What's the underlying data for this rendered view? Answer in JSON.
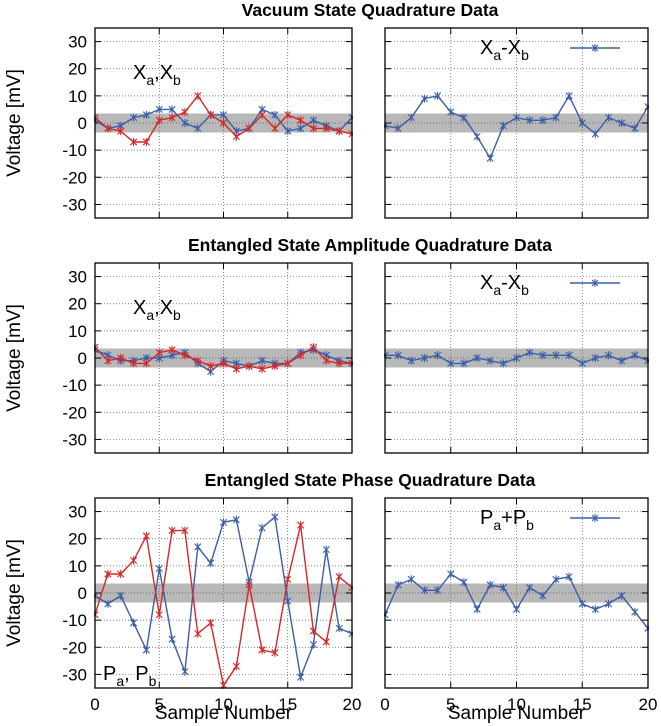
{
  "chart_data": [
    {
      "type": "line",
      "title": "Vacuum State Quadrature Data",
      "xlabel": "",
      "ylabel": "Voltage [mV]",
      "xlim": [
        0,
        20
      ],
      "ylim": [
        -35,
        35
      ],
      "x_ticks": [
        "0",
        "5",
        "10",
        "15",
        "20"
      ],
      "y_ticks": [
        "30",
        "20",
        "10",
        "0",
        "-10",
        "-20",
        "-30"
      ],
      "x_tick_labels_shown": false,
      "grid": true,
      "band": [
        -3.5,
        3.5
      ],
      "legend": {
        "main": "X",
        "sub1": "a",
        "mid": ",X",
        "sub2": "b",
        "placement": "top-left"
      },
      "series": [
        {
          "color": "#3b5ea8",
          "marker": "x",
          "x": [
            0,
            1,
            2,
            3,
            4,
            5,
            6,
            7,
            8,
            9,
            10,
            11,
            12,
            13,
            14,
            15,
            16,
            17,
            18,
            19,
            20
          ],
          "values": [
            1,
            -2,
            -1,
            2,
            3,
            5,
            5,
            0,
            -2,
            3,
            3,
            -3,
            -2,
            5,
            3,
            -3,
            -2,
            1,
            -1,
            -3,
            2
          ]
        },
        {
          "color": "#d62728",
          "marker": "x",
          "x": [
            0,
            1,
            2,
            3,
            4,
            5,
            6,
            7,
            8,
            9,
            10,
            11,
            12,
            13,
            14,
            15,
            16,
            17,
            18,
            19,
            20
          ],
          "values": [
            2,
            -2,
            -3,
            -7,
            -7,
            1,
            2,
            4,
            10,
            3,
            0,
            -5,
            -2,
            3,
            -2,
            3,
            1,
            -2,
            -2,
            -3,
            -4
          ]
        }
      ]
    },
    {
      "type": "line",
      "title": "",
      "xlabel": "",
      "ylabel": "",
      "xlim": [
        0,
        20
      ],
      "ylim": [
        -35,
        35
      ],
      "x_ticks": [
        "0",
        "5",
        "10",
        "15",
        "20"
      ],
      "grid": true,
      "band": [
        -3.5,
        3.5
      ],
      "legend": {
        "main": "X",
        "sub1": "a",
        "mid": "-X",
        "sub2": "b",
        "placement": "top-right"
      },
      "series": [
        {
          "color": "#3b5ea8",
          "marker": "x",
          "x": [
            0,
            1,
            2,
            3,
            4,
            5,
            6,
            7,
            8,
            9,
            10,
            11,
            12,
            13,
            14,
            15,
            16,
            17,
            18,
            19,
            20
          ],
          "values": [
            -1,
            -2,
            2,
            9,
            10,
            4,
            2,
            -5,
            -13,
            -1,
            2,
            1,
            1,
            2,
            10,
            0,
            -4,
            2,
            0,
            -2,
            6
          ]
        }
      ]
    },
    {
      "type": "line",
      "title": "Entangled State Amplitude Quadrature Data",
      "xlabel": "",
      "ylabel": "Voltage [mV]",
      "xlim": [
        0,
        20
      ],
      "ylim": [
        -35,
        35
      ],
      "x_ticks": [
        "0",
        "5",
        "10",
        "15",
        "20"
      ],
      "y_ticks": [
        "30",
        "20",
        "10",
        "0",
        "-10",
        "-20",
        "-30"
      ],
      "x_tick_labels_shown": false,
      "grid": true,
      "band": [
        -3.5,
        3.5
      ],
      "legend": {
        "main": "X",
        "sub1": "a",
        "mid": ",X",
        "sub2": "b",
        "placement": "top-left"
      },
      "series": [
        {
          "color": "#3b5ea8",
          "marker": "x",
          "x": [
            0,
            1,
            2,
            3,
            4,
            5,
            6,
            7,
            8,
            9,
            10,
            11,
            12,
            13,
            14,
            15,
            16,
            17,
            18,
            19,
            20
          ],
          "values": [
            3,
            1,
            -1,
            -1,
            0,
            0,
            1,
            2,
            -2,
            -5,
            -1,
            -2,
            -3,
            -1,
            -2,
            -2,
            2,
            3,
            1,
            -1,
            -2
          ]
        },
        {
          "color": "#d62728",
          "marker": "x",
          "x": [
            0,
            1,
            2,
            3,
            4,
            5,
            6,
            7,
            8,
            9,
            10,
            11,
            12,
            13,
            14,
            15,
            16,
            17,
            18,
            19,
            20
          ],
          "values": [
            4,
            -1,
            0,
            -2,
            -2,
            2,
            3,
            1,
            -1,
            -3,
            -2,
            -4,
            -3,
            -4,
            -3,
            -2,
            1,
            4,
            -1,
            -2,
            -2
          ]
        }
      ]
    },
    {
      "type": "line",
      "title": "",
      "xlabel": "",
      "ylabel": "",
      "xlim": [
        0,
        20
      ],
      "ylim": [
        -35,
        35
      ],
      "x_ticks": [
        "0",
        "5",
        "10",
        "15",
        "20"
      ],
      "grid": true,
      "band": [
        -3.5,
        3.5
      ],
      "legend": {
        "main": "X",
        "sub1": "a",
        "mid": "-X",
        "sub2": "b",
        "placement": "top-right"
      },
      "series": [
        {
          "color": "#3b5ea8",
          "marker": "x",
          "x": [
            0,
            1,
            2,
            3,
            4,
            5,
            6,
            7,
            8,
            9,
            10,
            11,
            12,
            13,
            14,
            15,
            16,
            17,
            18,
            19,
            20
          ],
          "values": [
            1,
            1,
            -1,
            0,
            1,
            -2,
            -2,
            0,
            -1,
            -2,
            0,
            2,
            1,
            1,
            1,
            -2,
            0,
            1,
            -1,
            1,
            -1
          ]
        }
      ]
    },
    {
      "type": "line",
      "title": "Entangled State Phase Quadrature Data",
      "xlabel": "Sample Number",
      "ylabel": "Voltage [mV]",
      "xlim": [
        0,
        20
      ],
      "ylim": [
        -35,
        35
      ],
      "x_ticks": [
        "0",
        "5",
        "10",
        "15",
        "20"
      ],
      "y_ticks": [
        "30",
        "20",
        "10",
        "0",
        "-10",
        "-20",
        "-30"
      ],
      "x_tick_labels_shown": true,
      "grid": true,
      "band": [
        -3.5,
        3.5
      ],
      "legend": {
        "main": "P",
        "sub1": "a",
        "mid": ", P",
        "sub2": "b",
        "placement": "bottom-left"
      },
      "series": [
        {
          "color": "#3b5ea8",
          "marker": "x",
          "x": [
            0,
            1,
            2,
            3,
            4,
            5,
            6,
            7,
            8,
            9,
            10,
            11,
            12,
            13,
            14,
            15,
            16,
            17,
            18,
            19,
            20
          ],
          "values": [
            -1,
            -4,
            -1,
            -11,
            -21,
            9,
            -17,
            -29,
            17,
            11,
            26,
            27,
            4,
            24,
            28,
            -3,
            -31,
            -19,
            16,
            -13,
            -15
          ]
        },
        {
          "color": "#d62728",
          "marker": "x",
          "x": [
            0,
            1,
            2,
            3,
            4,
            5,
            6,
            7,
            8,
            9,
            10,
            11,
            12,
            13,
            14,
            15,
            16,
            17,
            18,
            19,
            20
          ],
          "values": [
            -8,
            7,
            7,
            12,
            21,
            -8,
            23,
            23,
            -15,
            -11,
            -34,
            -27,
            3,
            -21,
            -22,
            5,
            25,
            -14,
            -18,
            6,
            2
          ]
        }
      ]
    },
    {
      "type": "line",
      "title": "",
      "xlabel": "Sample Number",
      "ylabel": "",
      "xlim": [
        0,
        20
      ],
      "ylim": [
        -35,
        35
      ],
      "x_ticks": [
        "0",
        "5",
        "10",
        "15",
        "20"
      ],
      "x_tick_labels_shown": true,
      "grid": true,
      "band": [
        -3.5,
        3.5
      ],
      "legend": {
        "main": "P",
        "sub1": "a",
        "mid": "+P",
        "sub2": "b",
        "placement": "top-right"
      },
      "series": [
        {
          "color": "#3b5ea8",
          "marker": "x",
          "x": [
            0,
            1,
            2,
            3,
            4,
            5,
            6,
            7,
            8,
            9,
            10,
            11,
            12,
            13,
            14,
            15,
            16,
            17,
            18,
            19,
            20
          ],
          "values": [
            -8,
            3,
            5,
            1,
            1,
            7,
            4,
            -6,
            3,
            2,
            -6,
            2,
            -1,
            5,
            6,
            -4,
            -6,
            -4,
            -1,
            -7,
            -13
          ]
        }
      ]
    }
  ]
}
